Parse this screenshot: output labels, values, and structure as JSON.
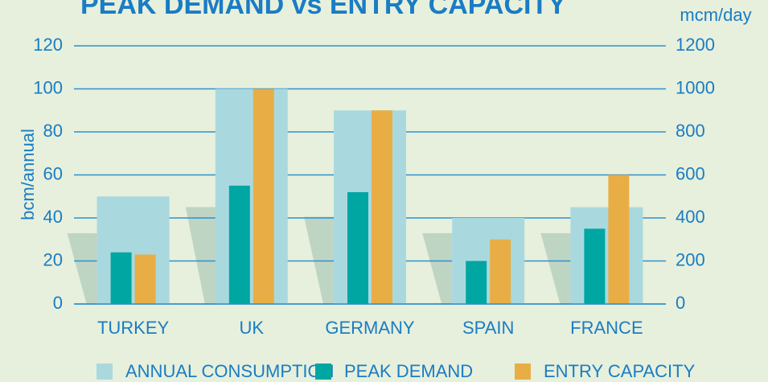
{
  "chart_data": {
    "type": "bar",
    "title": "PEAK DEMAND vs ENTRY CAPACITY",
    "ylabel": "bcm/annual",
    "y2label": "mcm/day",
    "categories": [
      "TURKEY",
      "UK",
      "GERMANY",
      "SPAIN",
      "FRANCE"
    ],
    "series": [
      {
        "name": "ANNUAL CONSUMPTION",
        "color": "#a9d9df",
        "values": [
          50,
          100,
          90,
          40,
          45
        ]
      },
      {
        "name": "PEAK DEMAND",
        "color": "#00a6a2",
        "axis": "y2",
        "values": [
          240,
          550,
          520,
          200,
          350
        ]
      },
      {
        "name": "ENTRY CAPACITY",
        "color": "#e8ae45",
        "axis": "y2",
        "values": [
          230,
          1000,
          900,
          300,
          600
        ]
      }
    ],
    "ylim": [
      0,
      120
    ],
    "yticks": [
      0,
      20,
      40,
      60,
      80,
      100,
      120
    ],
    "y2lim": [
      0,
      1200
    ],
    "y2ticks": [
      0,
      200,
      400,
      600,
      800,
      1000,
      1200
    ],
    "grid": true,
    "legend": "bottom"
  }
}
